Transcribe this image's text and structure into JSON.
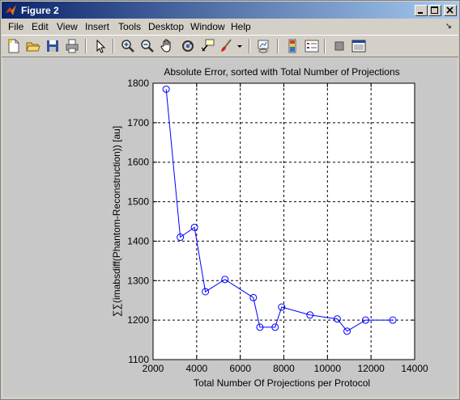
{
  "window": {
    "title": "Figure 2"
  },
  "menu": {
    "items": [
      "File",
      "Edit",
      "View",
      "Insert",
      "Tools",
      "Desktop",
      "Window",
      "Help"
    ],
    "dock_arrow": "↘"
  },
  "toolbar": {
    "buttons": [
      "new-figure-icon",
      "open-file-icon",
      "save-icon",
      "print-icon",
      "edit-plot-arrow-icon",
      "zoom-in-icon",
      "zoom-out-icon",
      "pan-hand-icon",
      "rotate-3d-icon",
      "data-cursor-icon",
      "brush-icon",
      "brush-dropdown-icon",
      "link-plot-icon",
      "colorbar-icon",
      "legend-icon",
      "hide-plot-tools-icon",
      "show-plot-tools-icon"
    ]
  },
  "chart_data": {
    "type": "line",
    "title": "Absolute Error, sorted with Total Number of Projections",
    "xlabel": "Total Number Of Projections per Protocol",
    "ylabel": "∑∑(imabsdiff(Phantom-Reconstruction)) [au]",
    "xlim": [
      2000,
      14000
    ],
    "ylim": [
      1100,
      1800
    ],
    "xticks": [
      2000,
      4000,
      6000,
      8000,
      10000,
      12000,
      14000
    ],
    "yticks": [
      1100,
      1200,
      1300,
      1400,
      1500,
      1600,
      1700,
      1800
    ],
    "grid": true,
    "color": "#0000ff",
    "marker": "circle",
    "x": [
      2600,
      3250,
      3900,
      4400,
      5300,
      6600,
      6900,
      7600,
      7900,
      9200,
      10450,
      10900,
      11750,
      13000
    ],
    "y": [
      1785,
      1410,
      1435,
      1272,
      1303,
      1257,
      1182,
      1182,
      1233,
      1213,
      1203,
      1172,
      1200,
      1200
    ]
  }
}
